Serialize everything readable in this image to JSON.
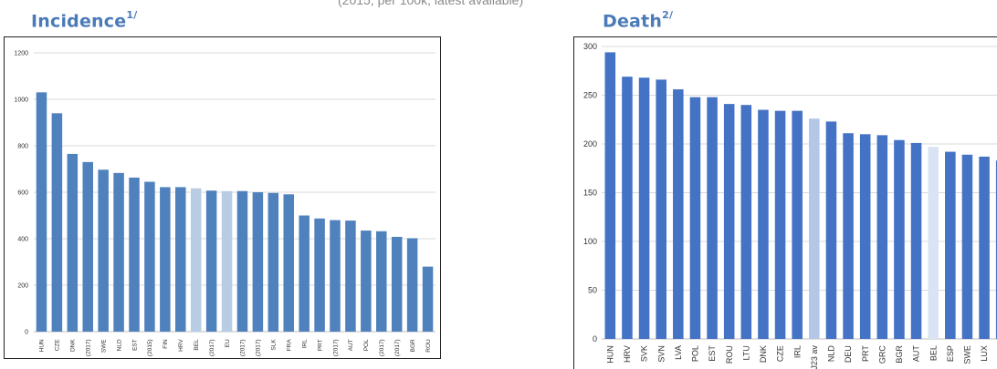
{
  "header": {
    "caption": "(2015, per 100k, latest available)"
  },
  "panels": {
    "left": {
      "title": "Incidence",
      "superscript": "1/"
    },
    "right": {
      "title": "Death",
      "superscript": "2/"
    }
  },
  "colors": {
    "left_bar": "#4f81bd",
    "left_highlight": "#b8cce4",
    "right_bar": "#4472c4",
    "right_highlight": "#b4c7e7",
    "right_highlight_light": "#dae3f3",
    "grid": "#d9d9d9"
  },
  "chart_data": [
    {
      "type": "bar",
      "title": "Incidence",
      "categories": [
        "HUN",
        "CZE",
        "DNK",
        "SLV (2017)",
        "SWE",
        "NLD",
        "EST",
        "LTU (2015)",
        "FIN",
        "HRV",
        "BEL",
        "DEU (2017)",
        "EU",
        "LTV (2017)",
        "ITA (2017)",
        "SLK",
        "FRA",
        "IRL",
        "PRT",
        "MLT (2017)",
        "AUT",
        "POL",
        "CYP (2017)",
        "LUX (2017)",
        "BGR",
        "ROU"
      ],
      "values": [
        1030,
        940,
        765,
        730,
        697,
        683,
        663,
        645,
        622,
        622,
        617,
        607,
        605,
        605,
        600,
        597,
        591,
        500,
        487,
        480,
        478,
        435,
        432,
        408,
        402,
        280
      ],
      "highlight": [
        "BEL",
        "EU"
      ],
      "ylim": [
        0,
        1200
      ],
      "yticks": [
        0,
        200,
        400,
        600,
        800,
        1000,
        1200
      ],
      "grid": true,
      "xlabel": "",
      "ylabel": ""
    },
    {
      "type": "bar",
      "title": "Death",
      "categories": [
        "HUN",
        "HRV",
        "SVK",
        "SVN",
        "LVA",
        "POL",
        "EST",
        "ROU",
        "LTU",
        "DNK",
        "CZE",
        "IRL",
        "J23 av",
        "NLD",
        "DEU",
        "PRT",
        "GRC",
        "BGR",
        "AUT",
        "BEL",
        "ESP",
        "SWE",
        "LUX",
        ""
      ],
      "values": [
        294,
        269,
        268,
        266,
        256,
        248,
        248,
        241,
        240,
        235,
        234,
        234,
        226,
        223,
        211,
        210,
        209,
        204,
        201,
        197,
        192,
        189,
        187,
        183
      ],
      "highlight": [
        "J23 av"
      ],
      "highlight_light": [
        "BEL"
      ],
      "ylim": [
        0,
        300
      ],
      "yticks": [
        0,
        50,
        100,
        150,
        200,
        250,
        300
      ],
      "grid": true,
      "xlabel": "",
      "ylabel": ""
    }
  ]
}
